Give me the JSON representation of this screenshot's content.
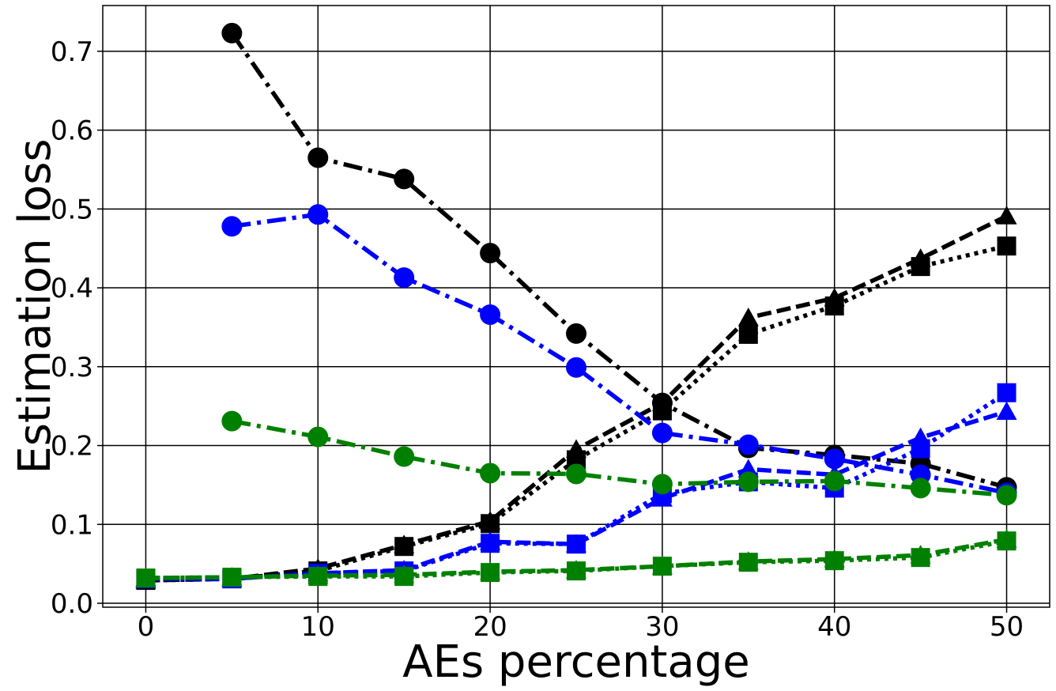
{
  "chart_data": {
    "type": "line",
    "title": "",
    "xlabel": "AEs percentage",
    "ylabel": "Estimation loss",
    "xlim": [
      -2.5,
      52.5
    ],
    "ylim": [
      -0.005,
      0.758
    ],
    "xticks": [
      0,
      10,
      20,
      30,
      40,
      50
    ],
    "yticks": [
      0.0,
      0.1,
      0.2,
      0.3,
      0.4,
      0.5,
      0.6,
      0.7
    ],
    "xtick_labels": [
      "0",
      "10",
      "20",
      "30",
      "40",
      "50"
    ],
    "ytick_labels": [
      "0.0",
      "0.1",
      "0.2",
      "0.3",
      "0.4",
      "0.5",
      "0.6",
      "0.7"
    ],
    "grid": true,
    "legend": false,
    "series": [
      {
        "color": "#000000",
        "marker": "circle",
        "line": "dashdot",
        "x": [
          5,
          10,
          15,
          20,
          25,
          30,
          35,
          40,
          45,
          50
        ],
        "y": [
          0.723,
          0.565,
          0.538,
          0.444,
          0.342,
          0.254,
          0.197,
          0.188,
          0.177,
          0.147
        ]
      },
      {
        "color": "#000000",
        "marker": "triangle",
        "line": "dashed",
        "x": [
          0,
          5,
          10,
          15,
          20,
          25,
          30,
          35,
          40,
          45,
          50
        ],
        "y": [
          0.029,
          0.031,
          0.044,
          0.074,
          0.104,
          0.195,
          0.254,
          0.362,
          0.387,
          0.437,
          0.491
        ]
      },
      {
        "color": "#000000",
        "marker": "square",
        "line": "dotted",
        "x": [
          0,
          5,
          10,
          15,
          20,
          25,
          30,
          35,
          40,
          45,
          50
        ],
        "y": [
          0.029,
          0.031,
          0.041,
          0.072,
          0.101,
          0.182,
          0.244,
          0.341,
          0.377,
          0.427,
          0.453
        ]
      },
      {
        "color": "#0000ff",
        "marker": "circle",
        "line": "dashdot",
        "x": [
          5,
          10,
          15,
          20,
          25,
          30,
          35,
          40,
          45,
          50
        ],
        "y": [
          0.478,
          0.493,
          0.413,
          0.366,
          0.299,
          0.216,
          0.201,
          0.183,
          0.163,
          0.14
        ]
      },
      {
        "color": "#0000ff",
        "marker": "triangle",
        "line": "dashed",
        "x": [
          0,
          5,
          10,
          15,
          20,
          25,
          30,
          35,
          40,
          45,
          50
        ],
        "y": [
          0.031,
          0.031,
          0.038,
          0.042,
          0.078,
          0.075,
          0.133,
          0.17,
          0.163,
          0.21,
          0.243
        ]
      },
      {
        "color": "#0000ff",
        "marker": "square",
        "line": "dotted",
        "x": [
          0,
          5,
          10,
          15,
          20,
          25,
          30,
          35,
          40,
          45,
          50
        ],
        "y": [
          0.031,
          0.031,
          0.038,
          0.041,
          0.076,
          0.075,
          0.139,
          0.154,
          0.146,
          0.196,
          0.267
        ]
      },
      {
        "color": "#008000",
        "marker": "circle",
        "line": "dashdot",
        "x": [
          5,
          10,
          15,
          20,
          25,
          30,
          35,
          40,
          45,
          50
        ],
        "y": [
          0.231,
          0.211,
          0.186,
          0.165,
          0.164,
          0.151,
          0.154,
          0.155,
          0.146,
          0.137
        ]
      },
      {
        "color": "#008000",
        "marker": "triangle",
        "line": "dashed",
        "x": [
          0,
          5,
          10,
          15,
          20,
          25,
          30,
          35,
          40,
          45,
          50
        ],
        "y": [
          0.032,
          0.033,
          0.035,
          0.036,
          0.04,
          0.042,
          0.047,
          0.053,
          0.056,
          0.061,
          0.081
        ]
      },
      {
        "color": "#008000",
        "marker": "square",
        "line": "dotted",
        "x": [
          0,
          5,
          10,
          15,
          20,
          25,
          30,
          35,
          40,
          45,
          50
        ],
        "y": [
          0.032,
          0.033,
          0.034,
          0.034,
          0.039,
          0.041,
          0.047,
          0.052,
          0.054,
          0.058,
          0.079
        ]
      }
    ]
  }
}
